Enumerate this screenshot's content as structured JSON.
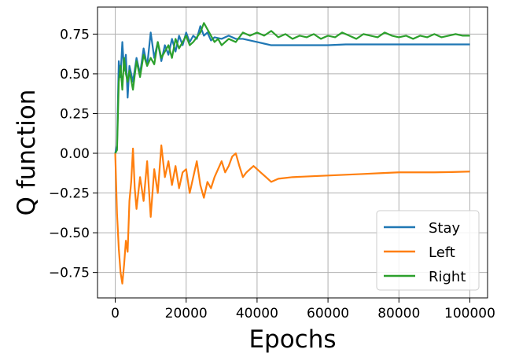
{
  "chart_data": {
    "type": "line",
    "title": "",
    "xlabel": "Epochs",
    "ylabel": "Q function",
    "xlim": [
      -5000,
      105000
    ],
    "ylim": [
      -0.91,
      0.92
    ],
    "x_ticks": [
      0,
      20000,
      40000,
      60000,
      80000,
      100000
    ],
    "x_tick_labels": [
      "0",
      "20000",
      "40000",
      "60000",
      "80000",
      "100000"
    ],
    "y_ticks": [
      0.75,
      0.5,
      0.25,
      0.0,
      -0.25,
      -0.5,
      -0.75
    ],
    "y_tick_labels": [
      "0.75",
      "0.50",
      "0.25",
      "0.00",
      "−0.25",
      "−0.50",
      "−0.75"
    ],
    "grid": true,
    "legend_position": "lower-right",
    "series": [
      {
        "name": "Stay",
        "color": "#1f77b4",
        "x": [
          0,
          500,
          1000,
          1500,
          2000,
          2500,
          3000,
          3500,
          4000,
          5000,
          6000,
          7000,
          8000,
          9000,
          10000,
          11000,
          12000,
          13000,
          14000,
          15000,
          16000,
          17000,
          18000,
          19000,
          20000,
          21000,
          22000,
          23000,
          24000,
          25000,
          26000,
          27000,
          28000,
          30000,
          32000,
          34000,
          36000,
          38000,
          40000,
          42000,
          44000,
          46000,
          50000,
          55000,
          60000,
          65000,
          70000,
          75000,
          80000,
          85000,
          90000,
          95000,
          100000
        ],
        "y": [
          0.0,
          0.05,
          0.58,
          0.48,
          0.7,
          0.52,
          0.62,
          0.35,
          0.55,
          0.45,
          0.6,
          0.5,
          0.66,
          0.55,
          0.76,
          0.6,
          0.7,
          0.58,
          0.68,
          0.62,
          0.72,
          0.64,
          0.74,
          0.68,
          0.76,
          0.7,
          0.74,
          0.72,
          0.8,
          0.74,
          0.76,
          0.71,
          0.73,
          0.72,
          0.74,
          0.72,
          0.72,
          0.71,
          0.7,
          0.69,
          0.68,
          0.68,
          0.68,
          0.68,
          0.68,
          0.685,
          0.685,
          0.685,
          0.685,
          0.685,
          0.685,
          0.685,
          0.685
        ]
      },
      {
        "name": "Left",
        "color": "#ff7f0e",
        "x": [
          0,
          500,
          1000,
          1500,
          2000,
          2500,
          3000,
          3500,
          4000,
          4500,
          5000,
          5500,
          6000,
          7000,
          8000,
          9000,
          10000,
          11000,
          12000,
          13000,
          14000,
          15000,
          16000,
          17000,
          18000,
          19000,
          20000,
          21000,
          22000,
          23000,
          24000,
          25000,
          26000,
          27000,
          28000,
          29000,
          30000,
          31000,
          32000,
          33000,
          34000,
          35000,
          36000,
          37000,
          38000,
          39000,
          40000,
          41000,
          42000,
          43000,
          44000,
          45000,
          46000,
          48000,
          50000,
          55000,
          60000,
          65000,
          70000,
          75000,
          80000,
          85000,
          90000,
          95000,
          100000
        ],
        "y": [
          0.0,
          -0.38,
          -0.6,
          -0.75,
          -0.82,
          -0.7,
          -0.55,
          -0.62,
          -0.3,
          -0.18,
          0.03,
          -0.22,
          -0.35,
          -0.15,
          -0.3,
          -0.05,
          -0.4,
          -0.1,
          -0.25,
          0.05,
          -0.15,
          -0.05,
          -0.2,
          -0.08,
          -0.22,
          -0.12,
          -0.1,
          -0.25,
          -0.15,
          -0.05,
          -0.2,
          -0.28,
          -0.18,
          -0.22,
          -0.15,
          -0.1,
          -0.05,
          -0.12,
          -0.08,
          -0.02,
          0.0,
          -0.08,
          -0.15,
          -0.12,
          -0.1,
          -0.08,
          -0.1,
          -0.12,
          -0.14,
          -0.16,
          -0.18,
          -0.17,
          -0.16,
          -0.155,
          -0.15,
          -0.145,
          -0.14,
          -0.135,
          -0.13,
          -0.125,
          -0.12,
          -0.12,
          -0.12,
          -0.118,
          -0.115
        ]
      },
      {
        "name": "Right",
        "color": "#2ca02c",
        "x": [
          0,
          500,
          1000,
          1500,
          2000,
          2500,
          3000,
          3500,
          4000,
          5000,
          6000,
          7000,
          8000,
          9000,
          10000,
          11000,
          12000,
          13000,
          14000,
          15000,
          16000,
          17000,
          18000,
          19000,
          20000,
          21000,
          22000,
          23000,
          24000,
          25000,
          26000,
          27000,
          28000,
          29000,
          30000,
          32000,
          34000,
          36000,
          38000,
          40000,
          42000,
          44000,
          46000,
          48000,
          50000,
          52000,
          54000,
          56000,
          58000,
          60000,
          62000,
          64000,
          66000,
          68000,
          70000,
          72000,
          74000,
          76000,
          78000,
          80000,
          82000,
          84000,
          86000,
          88000,
          90000,
          92000,
          94000,
          96000,
          98000,
          100000
        ],
        "y": [
          0.0,
          0.02,
          0.45,
          0.55,
          0.4,
          0.6,
          0.5,
          0.45,
          0.52,
          0.4,
          0.58,
          0.48,
          0.62,
          0.55,
          0.6,
          0.56,
          0.7,
          0.6,
          0.64,
          0.68,
          0.6,
          0.72,
          0.66,
          0.7,
          0.74,
          0.68,
          0.7,
          0.73,
          0.76,
          0.82,
          0.78,
          0.74,
          0.7,
          0.72,
          0.68,
          0.72,
          0.7,
          0.76,
          0.74,
          0.76,
          0.74,
          0.77,
          0.73,
          0.75,
          0.72,
          0.74,
          0.73,
          0.75,
          0.72,
          0.74,
          0.73,
          0.76,
          0.74,
          0.72,
          0.75,
          0.74,
          0.73,
          0.76,
          0.74,
          0.73,
          0.74,
          0.72,
          0.74,
          0.73,
          0.75,
          0.73,
          0.74,
          0.75,
          0.74,
          0.74
        ]
      }
    ]
  }
}
